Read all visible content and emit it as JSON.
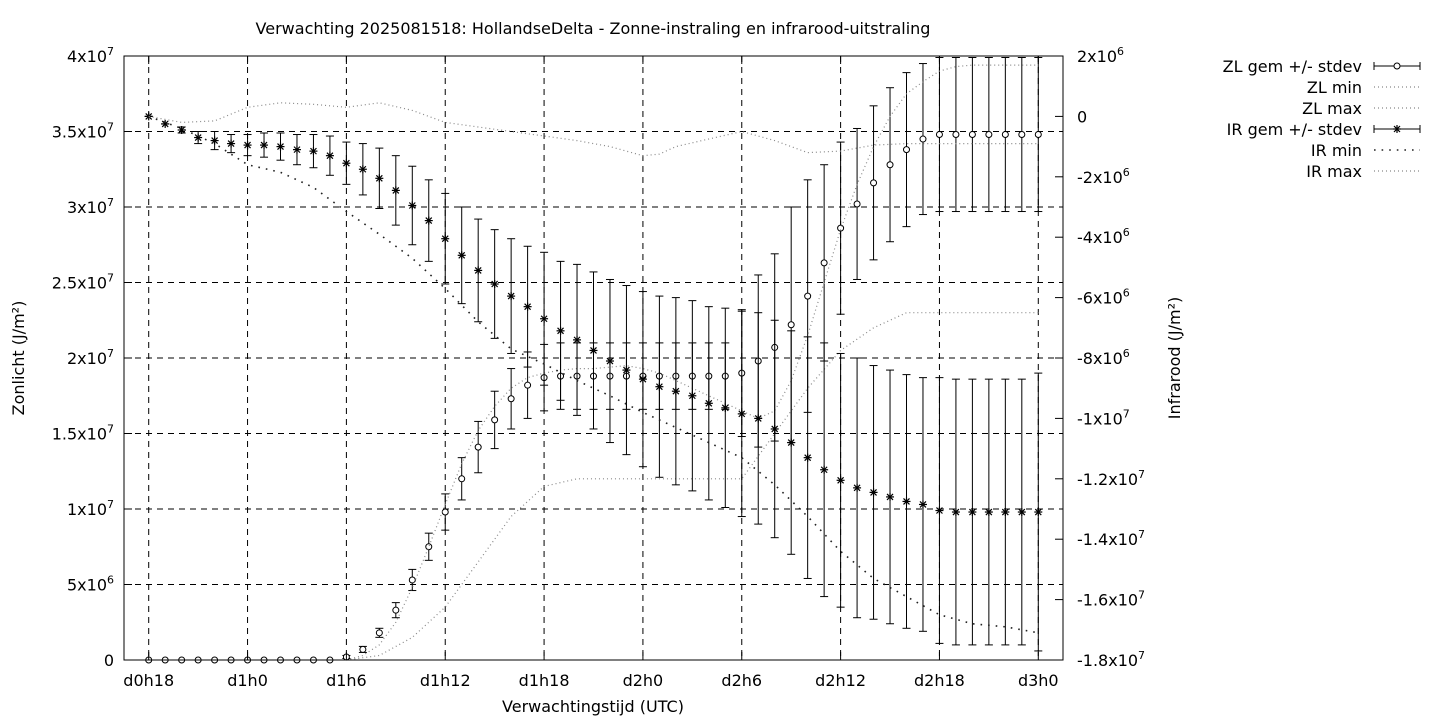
{
  "chart_data": {
    "type": "line",
    "title": "Verwachting 2025081518: HollandseDelta - Zonne-instraling en infrarood-uitstraling",
    "xlabel": "Verwachtingstijd (UTC)",
    "ylabel": "Zonlicht (J/m²)",
    "y2label": "Infrarood (J/m²)",
    "grid": true,
    "legend_position": "top-right outside",
    "x_unit": "hours since d0h18",
    "xlim": [
      -1.5,
      55.5
    ],
    "ylim": [
      0,
      40000000
    ],
    "y2lim": [
      -18000000,
      2000000
    ],
    "x_ticks": [
      {
        "x": 0,
        "label": "d0h18"
      },
      {
        "x": 6,
        "label": "d1h0"
      },
      {
        "x": 12,
        "label": "d1h6"
      },
      {
        "x": 18,
        "label": "d1h12"
      },
      {
        "x": 24,
        "label": "d1h18"
      },
      {
        "x": 30,
        "label": "d2h0"
      },
      {
        "x": 36,
        "label": "d2h6"
      },
      {
        "x": 42,
        "label": "d2h12"
      },
      {
        "x": 48,
        "label": "d2h18"
      },
      {
        "x": 54,
        "label": "d3h0"
      }
    ],
    "y_ticks": [
      {
        "v": 0,
        "label": "0"
      },
      {
        "v": 5000000,
        "label": "5x10",
        "exp": "6"
      },
      {
        "v": 10000000,
        "label": "1x10",
        "exp": "7"
      },
      {
        "v": 15000000,
        "label": "1.5x10",
        "exp": "7"
      },
      {
        "v": 20000000,
        "label": "2x10",
        "exp": "7"
      },
      {
        "v": 25000000,
        "label": "2.5x10",
        "exp": "7"
      },
      {
        "v": 30000000,
        "label": "3x10",
        "exp": "7"
      },
      {
        "v": 35000000,
        "label": "3.5x10",
        "exp": "7"
      },
      {
        "v": 40000000,
        "label": "4x10",
        "exp": "7"
      }
    ],
    "y2_ticks": [
      {
        "v": 2000000,
        "label": "2x10",
        "exp": "6"
      },
      {
        "v": 0,
        "label": "0"
      },
      {
        "v": -2000000,
        "label": "-2x10",
        "exp": "6"
      },
      {
        "v": -4000000,
        "label": "-4x10",
        "exp": "6"
      },
      {
        "v": -6000000,
        "label": "-6x10",
        "exp": "6"
      },
      {
        "v": -8000000,
        "label": "-8x10",
        "exp": "6"
      },
      {
        "v": -10000000,
        "label": "-1x10",
        "exp": "7"
      },
      {
        "v": -12000000,
        "label": "-1.2x10",
        "exp": "7"
      },
      {
        "v": -14000000,
        "label": "-1.4x10",
        "exp": "7"
      },
      {
        "v": -16000000,
        "label": "-1.6x10",
        "exp": "7"
      },
      {
        "v": -18000000,
        "label": "-1.8x10",
        "exp": "7"
      }
    ],
    "series": [
      {
        "name": "ZL gem +/- stdev",
        "style": "errorbar-circle",
        "axis": "y1",
        "x": [
          0,
          1,
          2,
          3,
          4,
          5,
          6,
          7,
          8,
          9,
          10,
          11,
          12,
          13,
          14,
          15,
          16,
          17,
          18,
          19,
          20,
          21,
          22,
          23,
          24,
          25,
          26,
          27,
          28,
          29,
          30,
          31,
          32,
          33,
          34,
          35,
          36,
          37,
          38,
          39,
          40,
          41,
          42,
          43,
          44,
          45,
          46,
          47,
          48,
          49,
          50,
          51,
          52,
          53,
          54
        ],
        "mean": [
          0,
          0,
          0,
          0,
          0,
          0,
          0,
          0,
          0,
          0,
          0,
          0,
          200000,
          700000,
          1800000,
          3300000,
          5300000,
          7500000,
          9800000,
          12000000,
          14100000,
          15900000,
          17300000,
          18200000,
          18700000,
          18800000,
          18800000,
          18800000,
          18800000,
          18800000,
          18800000,
          18800000,
          18800000,
          18800000,
          18800000,
          18800000,
          19000000,
          19800000,
          20700000,
          22200000,
          24100000,
          26300000,
          28600000,
          30200000,
          31600000,
          32800000,
          33800000,
          34500000,
          34800000,
          34800000,
          34800000,
          34800000,
          34800000,
          34800000,
          34800000
        ],
        "stdev": [
          0,
          0,
          0,
          0,
          0,
          0,
          0,
          0,
          0,
          0,
          0,
          0,
          100000,
          200000,
          300000,
          500000,
          700000,
          900000,
          1200000,
          1400000,
          1700000,
          1900000,
          2000000,
          2200000,
          2200000,
          2200000,
          2200000,
          2200000,
          2200000,
          2200000,
          2200000,
          2200000,
          2200000,
          2200000,
          2200000,
          2200000,
          4200000,
          5700000,
          6200000,
          7800000,
          7700000,
          6500000,
          5700000,
          5000000,
          5100000,
          5100000,
          5100000,
          5000000,
          5100000,
          5100000,
          5100000,
          5100000,
          5100000,
          5100000,
          5100000
        ]
      },
      {
        "name": "ZL min",
        "style": "dotted-fine",
        "axis": "y1",
        "x": [
          12,
          14,
          16,
          18,
          20,
          22,
          24,
          26,
          28,
          30,
          32,
          34,
          36,
          38,
          40,
          42,
          44,
          46,
          48,
          50,
          52,
          54
        ],
        "values": [
          0,
          300000,
          1500000,
          3500000,
          6500000,
          9500000,
          11500000,
          12000000,
          12000000,
          12000000,
          12000000,
          12000000,
          12000000,
          15000000,
          18000000,
          20500000,
          22000000,
          23000000,
          23000000,
          23000000,
          23000000,
          23000000
        ]
      },
      {
        "name": "ZL max",
        "style": "dotted-fine",
        "axis": "y1",
        "x": [
          12,
          13,
          14,
          15,
          16,
          17,
          18,
          19,
          20,
          21,
          22,
          23,
          24,
          25,
          26,
          27,
          28,
          29,
          30,
          31,
          32,
          33,
          34,
          35,
          36,
          37,
          38,
          39,
          40,
          41,
          42,
          43,
          44,
          45,
          46,
          47,
          48,
          49,
          50,
          51,
          52,
          53,
          54
        ],
        "values": [
          0,
          300000,
          1000000,
          2500000,
          4800000,
          7500000,
          10300000,
          13000000,
          15200000,
          16800000,
          18000000,
          18700000,
          19000000,
          19200000,
          19300000,
          19300000,
          19400000,
          19500000,
          19300000,
          19000000,
          18500000,
          18000000,
          17500000,
          17000000,
          16500000,
          16000000,
          16500000,
          18500000,
          21500000,
          25000000,
          28500000,
          31500000,
          34000000,
          36000000,
          37500000,
          38300000,
          39000000,
          39300000,
          39400000,
          39400000,
          39400000,
          39400000,
          39400000
        ]
      },
      {
        "name": "IR gem +/- stdev",
        "style": "errorbar-star",
        "axis": "y2",
        "x": [
          0,
          1,
          2,
          3,
          4,
          5,
          6,
          7,
          8,
          9,
          10,
          11,
          12,
          13,
          14,
          15,
          16,
          17,
          18,
          19,
          20,
          21,
          22,
          23,
          24,
          25,
          26,
          27,
          28,
          29,
          30,
          31,
          32,
          33,
          34,
          35,
          36,
          37,
          38,
          39,
          40,
          41,
          42,
          43,
          44,
          45,
          46,
          47,
          48,
          49,
          50,
          51,
          52,
          53,
          54
        ],
        "mean": [
          0,
          -250000,
          -450000,
          -700000,
          -800000,
          -900000,
          -950000,
          -950000,
          -1000000,
          -1100000,
          -1150000,
          -1300000,
          -1550000,
          -1750000,
          -2050000,
          -2450000,
          -2950000,
          -3450000,
          -4050000,
          -4600000,
          -5100000,
          -5550000,
          -5950000,
          -6300000,
          -6700000,
          -7100000,
          -7400000,
          -7750000,
          -8100000,
          -8400000,
          -8700000,
          -8950000,
          -9100000,
          -9250000,
          -9500000,
          -9650000,
          -9850000,
          -10000000,
          -10350000,
          -10800000,
          -11300000,
          -11700000,
          -12050000,
          -12300000,
          -12450000,
          -12600000,
          -12750000,
          -12850000,
          -13050000,
          -13100000,
          -13100000,
          -13100000,
          -13100000,
          -13100000,
          -13100000
        ],
        "stdev": [
          0,
          0,
          100000,
          200000,
          300000,
          300000,
          350000,
          400000,
          450000,
          500000,
          550000,
          650000,
          700000,
          850000,
          1000000,
          1150000,
          1300000,
          1350000,
          1500000,
          1600000,
          1700000,
          1800000,
          1900000,
          2000000,
          2200000,
          2300000,
          2500000,
          2600000,
          2700000,
          2800000,
          2900000,
          3000000,
          3100000,
          3150000,
          3200000,
          3300000,
          3400000,
          3500000,
          3600000,
          3700000,
          4000000,
          4200000,
          4200000,
          4300000,
          4200000,
          4200000,
          4200000,
          4200000,
          4400000,
          4400000,
          4400000,
          4400000,
          4400000,
          4400000,
          4600000
        ]
      },
      {
        "name": "IR min",
        "style": "dotted-coarse",
        "axis": "y2",
        "x": [
          0,
          2,
          4,
          6,
          8,
          10,
          12,
          14,
          16,
          18,
          20,
          22,
          24,
          26,
          28,
          30,
          32,
          34,
          36,
          38,
          40,
          42,
          44,
          46,
          48,
          50,
          52,
          54
        ],
        "values": [
          0,
          -400000,
          -900000,
          -1600000,
          -1850000,
          -2350000,
          -3150000,
          -3900000,
          -4700000,
          -5700000,
          -6800000,
          -7700000,
          -8200000,
          -8750000,
          -9250000,
          -9800000,
          -10300000,
          -10800000,
          -11300000,
          -12200000,
          -13250000,
          -14400000,
          -15300000,
          -15900000,
          -16500000,
          -16800000,
          -16900000,
          -17100000
        ]
      },
      {
        "name": "IR max",
        "style": "dotted-fine",
        "axis": "y2",
        "x": [
          0,
          2,
          4,
          6,
          8,
          10,
          12,
          14,
          16,
          18,
          20,
          22,
          24,
          26,
          28,
          30,
          31,
          32,
          34,
          36,
          38,
          40,
          42,
          44,
          46,
          48,
          50,
          52,
          54
        ],
        "values": [
          0,
          -200000,
          -150000,
          300000,
          450000,
          400000,
          300000,
          450000,
          200000,
          -200000,
          -350000,
          -500000,
          -650000,
          -800000,
          -1000000,
          -1300000,
          -1250000,
          -1000000,
          -750000,
          -500000,
          -800000,
          -1200000,
          -1150000,
          -950000,
          -900000,
          -900000,
          -900000,
          -900000,
          -900000
        ]
      }
    ]
  }
}
